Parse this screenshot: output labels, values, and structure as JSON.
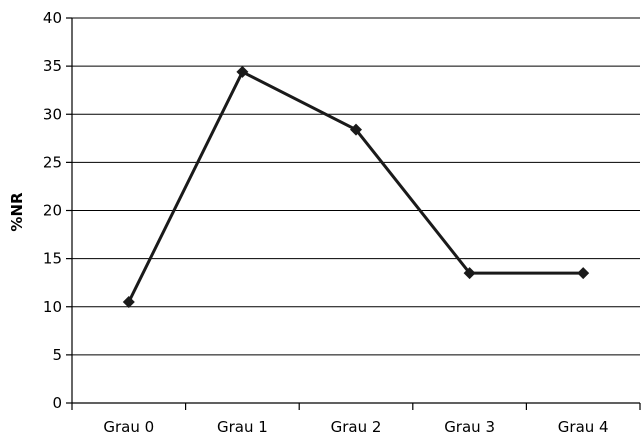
{
  "chart_data": {
    "type": "line",
    "categories": [
      "Grau 0",
      "Grau 1",
      "Grau 2",
      "Grau 3",
      "Grau 4"
    ],
    "series": [
      {
        "values": [
          10.5,
          34.4,
          28.4,
          13.5,
          13.5
        ]
      }
    ],
    "ylabel": "%NR",
    "xlabel": "",
    "ylim": [
      0,
      40
    ],
    "yticks": [
      0,
      5,
      10,
      15,
      20,
      25,
      30,
      35,
      40
    ],
    "grid": true,
    "marker": "diamond",
    "colors": {
      "line": "#1a1a1a",
      "grid": "#000000"
    }
  }
}
